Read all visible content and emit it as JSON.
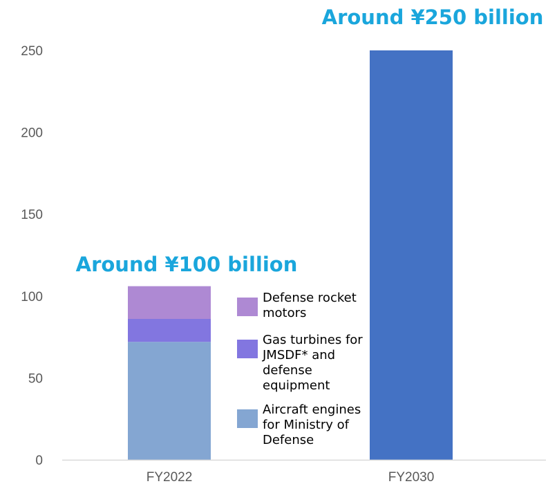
{
  "chart_data": {
    "type": "bar",
    "stacked": true,
    "categories": [
      "FY2022",
      "FY2030"
    ],
    "y_ticks": [
      "0",
      "50",
      "100",
      "150",
      "200",
      "250"
    ],
    "ylim": [
      0,
      250
    ],
    "grid": false,
    "title": "",
    "xlabel": "",
    "ylabel": "",
    "legend_placement": "inside, right of FY2022 bar",
    "series": [
      {
        "name": "Aircraft engines for Ministry of Defense",
        "color": "#84a6d2",
        "values": [
          72,
          null
        ]
      },
      {
        "name": "Gas turbines for JMSDF* and defense equipment",
        "color": "#8276e0",
        "values": [
          14,
          null
        ]
      },
      {
        "name": "Defense rocket motors",
        "color": "#ae89d3",
        "values": [
          20,
          null
        ]
      },
      {
        "name": "",
        "color": "#4472c4",
        "values": [
          null,
          250
        ]
      }
    ],
    "annotations": [
      {
        "text": "Around ¥100 billion",
        "category": "FY2022"
      },
      {
        "text": "Around ¥250 billion",
        "category": "FY2030"
      }
    ],
    "legend": [
      {
        "lines": [
          "Defense rocket",
          "motors"
        ],
        "color": "#ae89d3"
      },
      {
        "lines": [
          "Gas turbines for",
          "JMSDF* and",
          "defense",
          "equipment"
        ],
        "color": "#8276e0"
      },
      {
        "lines": [
          "Aircraft engines",
          "for Ministry of",
          "Defense"
        ],
        "color": "#84a6d2"
      }
    ],
    "annotation_color": "#1aa6dc",
    "axis_color": "#d9d9d9"
  }
}
